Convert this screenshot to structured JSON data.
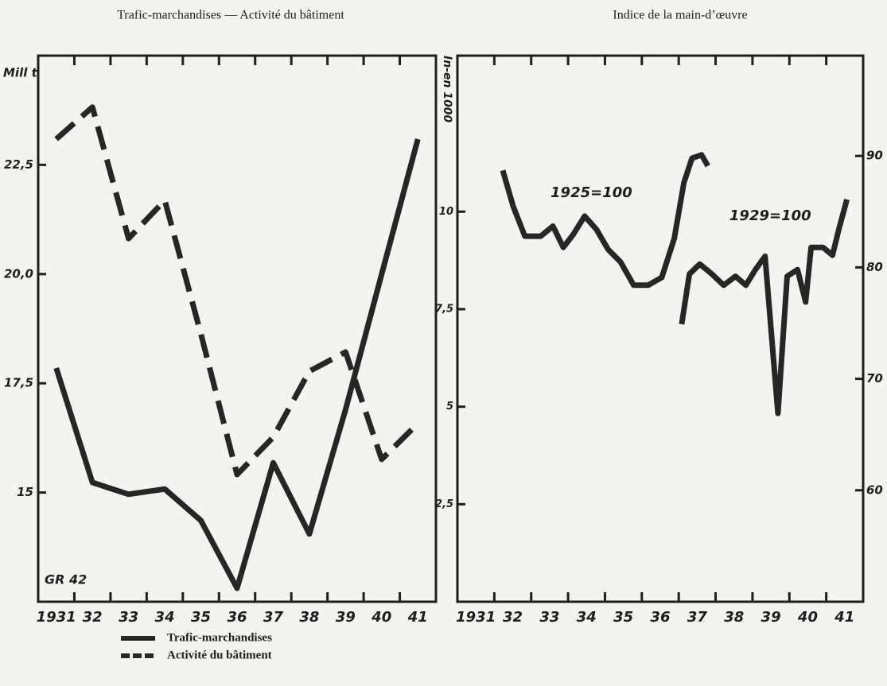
{
  "chart_data": [
    {
      "type": "line",
      "title": "Trafic-marchandises — Activité du bâtiment",
      "ylabel": "Mill t",
      "y2label": "In-en 1000",
      "annotation": "GR 42",
      "categories": [
        "1931",
        "32",
        "33",
        "34",
        "35",
        "36",
        "37",
        "38",
        "39",
        "40",
        "41"
      ],
      "series": [
        {
          "name": "Trafic-marchandises",
          "color": "#262626",
          "style": "solid",
          "values": [
            17.85,
            15.23,
            14.96,
            15.08,
            14.36,
            12.81,
            15.68,
            14.05,
            16.9,
            20.0,
            23.09
          ]
        },
        {
          "name": "Activité du bâtiment",
          "color": "#262626",
          "style": "dashed",
          "axis": "y2",
          "values": [
            11.86,
            12.68,
            9.31,
            10.29,
            6.87,
            3.26,
            4.22,
            5.91,
            6.4,
            3.65,
            4.57
          ]
        }
      ],
      "ylim": [
        12.5,
        25
      ],
      "yticks": [
        15,
        {
          "value": 17.5,
          "label": "17,5"
        },
        {
          "value": 20,
          "label": "20,0"
        },
        {
          "value": 22.5,
          "label": "22,5"
        }
      ],
      "y2lim": [
        0,
        14
      ],
      "y2ticks": [
        {
          "value": 2.5,
          "label": "2,5"
        },
        5,
        {
          "value": 7.5,
          "label": "7,5"
        },
        10
      ]
    },
    {
      "type": "line",
      "title": "Indice de la main-d’œuvre",
      "xlim": [
        1931,
        1942
      ],
      "xticks": [
        {
          "value": 1931,
          "label": "1931"
        },
        {
          "value": 1932,
          "label": "32"
        },
        {
          "value": 1933,
          "label": "33"
        },
        {
          "value": 1934,
          "label": "34"
        },
        {
          "value": 1935,
          "label": "35"
        },
        {
          "value": 1936,
          "label": "36"
        },
        {
          "value": 1937,
          "label": "37"
        },
        {
          "value": 1938,
          "label": "38"
        },
        {
          "value": 1939,
          "label": "39"
        },
        {
          "value": 1940,
          "label": "40"
        },
        {
          "value": 1941,
          "label": "41"
        }
      ],
      "ylim": [
        50,
        99
      ],
      "yticks": [
        60,
        70,
        80,
        90
      ],
      "series": [
        {
          "name": "1925=100",
          "color": "#262626",
          "x": [
            1932.23,
            1932.51,
            1932.83,
            1933.26,
            1933.59,
            1933.87,
            1934.13,
            1934.45,
            1934.77,
            1935.09,
            1935.42,
            1935.78,
            1936.17,
            1936.54,
            1936.88,
            1937.14,
            1937.36,
            1937.62,
            1937.79
          ],
          "values": [
            88.7,
            85.5,
            82.8,
            82.8,
            83.7,
            81.8,
            82.9,
            84.6,
            83.4,
            81.6,
            80.5,
            78.4,
            78.4,
            79.1,
            82.6,
            87.6,
            89.8,
            90.1,
            89.1
          ]
        },
        {
          "name": "1929=100",
          "color": "#262626",
          "x": [
            1937.08,
            1937.29,
            1937.57,
            1937.9,
            1938.22,
            1938.54,
            1938.82,
            1939.08,
            1939.34,
            1939.69,
            1939.94,
            1940.22,
            1940.44,
            1940.59,
            1940.91,
            1941.17,
            1941.34,
            1941.56
          ],
          "values": [
            74.9,
            79.4,
            80.3,
            79.4,
            78.4,
            79.2,
            78.4,
            79.8,
            81.0,
            66.9,
            79.2,
            79.8,
            76.9,
            81.8,
            81.8,
            81.1,
            83.4,
            86.1
          ]
        }
      ]
    }
  ]
}
